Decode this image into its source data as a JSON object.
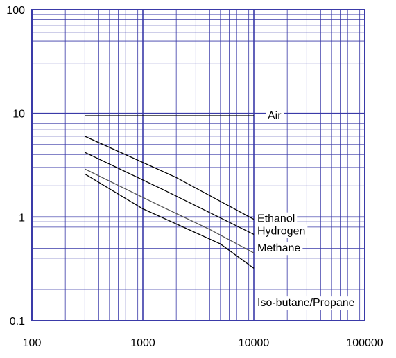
{
  "chart_data": {
    "type": "line",
    "title": "",
    "xlabel": "",
    "ylabel": "",
    "x_scale": "log",
    "y_scale": "log",
    "xlim": [
      100,
      100000
    ],
    "ylim": [
      0.1,
      100
    ],
    "grid": true,
    "grid_color": "#3a3aa8",
    "line_color": "#000000",
    "x_ticks": [
      {
        "value": 100,
        "label": "100"
      },
      {
        "value": 1000,
        "label": "1000"
      },
      {
        "value": 10000,
        "label": "10000"
      },
      {
        "value": 100000,
        "label": "100000"
      }
    ],
    "y_ticks": [
      {
        "value": 100,
        "label": "100"
      },
      {
        "value": 10,
        "label": "10"
      },
      {
        "value": 1,
        "label": "1"
      },
      {
        "value": 0.1,
        "label": "0.1"
      }
    ],
    "series": [
      {
        "name": "Air",
        "color": "#000000",
        "x": [
          300,
          10000
        ],
        "y": [
          9.5,
          9.5
        ]
      },
      {
        "name": "Ethanol",
        "color": "#000000",
        "x": [
          300,
          2000,
          10000
        ],
        "y": [
          6.0,
          2.4,
          0.95
        ]
      },
      {
        "name": "Hydrogen",
        "color": "#000000",
        "x": [
          300,
          1500,
          10000
        ],
        "y": [
          4.2,
          1.85,
          0.68
        ]
      },
      {
        "name": "Methane",
        "color": "#555555",
        "x": [
          300,
          1500,
          4000,
          10000
        ],
        "y": [
          2.9,
          1.25,
          0.76,
          0.45
        ]
      },
      {
        "name": "Iso-butane/Propane",
        "color": "#000000",
        "x": [
          300,
          1000,
          5000,
          10000
        ],
        "y": [
          2.6,
          1.2,
          0.55,
          0.32
        ]
      }
    ]
  }
}
